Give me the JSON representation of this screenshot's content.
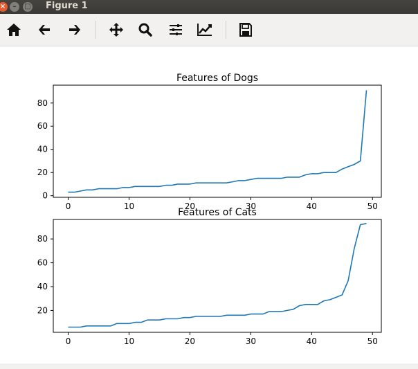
{
  "window": {
    "title": "Figure 1"
  },
  "toolbar": {
    "buttons": [
      "home-icon",
      "back-arrow-icon",
      "forward-arrow-icon",
      "pan-icon",
      "zoom-icon",
      "subplots-icon",
      "edit-axes-icon",
      "save-icon"
    ]
  },
  "chart_data": [
    {
      "type": "line",
      "title": "Features of Dogs",
      "x": [
        0,
        1,
        2,
        3,
        4,
        5,
        6,
        7,
        8,
        9,
        10,
        11,
        12,
        13,
        14,
        15,
        16,
        17,
        18,
        19,
        20,
        21,
        22,
        23,
        24,
        25,
        26,
        27,
        28,
        29,
        30,
        31,
        32,
        33,
        34,
        35,
        36,
        37,
        38,
        39,
        40,
        41,
        42,
        43,
        44,
        45,
        46,
        47,
        48,
        49
      ],
      "values": [
        3,
        3,
        4,
        5,
        5,
        6,
        6,
        6,
        6,
        7,
        7,
        8,
        8,
        8,
        8,
        8,
        9,
        9,
        10,
        10,
        10,
        11,
        11,
        11,
        11,
        11,
        11,
        12,
        13,
        13,
        14,
        15,
        15,
        15,
        15,
        15,
        16,
        16,
        16,
        18,
        19,
        19,
        20,
        20,
        20,
        23,
        25,
        27,
        30,
        91
      ],
      "xticks": [
        "0",
        "10",
        "20",
        "30",
        "40",
        "50"
      ],
      "yticks": [
        "0",
        "20",
        "40",
        "60",
        "80"
      ],
      "xlim": [
        -2.45,
        51.45
      ],
      "ylim": [
        -1.4,
        95.4
      ],
      "color": "#1f77b4"
    },
    {
      "type": "line",
      "title": "Features of Cats",
      "x": [
        0,
        1,
        2,
        3,
        4,
        5,
        6,
        7,
        8,
        9,
        10,
        11,
        12,
        13,
        14,
        15,
        16,
        17,
        18,
        19,
        20,
        21,
        22,
        23,
        24,
        25,
        26,
        27,
        28,
        29,
        30,
        31,
        32,
        33,
        34,
        35,
        36,
        37,
        38,
        39,
        40,
        41,
        42,
        43,
        44,
        45,
        46,
        47,
        48,
        49
      ],
      "values": [
        6,
        6,
        6,
        7,
        7,
        7,
        7,
        7,
        9,
        9,
        9,
        10,
        10,
        12,
        12,
        12,
        13,
        13,
        13,
        14,
        14,
        15,
        15,
        15,
        15,
        15,
        16,
        16,
        16,
        16,
        17,
        17,
        17,
        19,
        19,
        19,
        20,
        21,
        24,
        25,
        25,
        25,
        28,
        29,
        31,
        33,
        45,
        72,
        92,
        93
      ],
      "xticks": [
        "0",
        "10",
        "20",
        "30",
        "40",
        "50"
      ],
      "yticks": [
        "20",
        "40",
        "60",
        "80"
      ],
      "xlim": [
        -2.45,
        51.45
      ],
      "ylim": [
        1.65,
        96.35
      ],
      "color": "#1f77b4"
    }
  ]
}
